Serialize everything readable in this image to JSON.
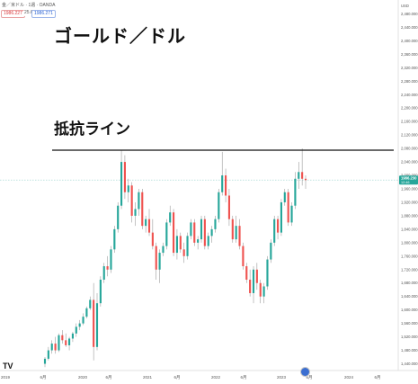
{
  "header": {
    "symbol_line": "金／米ドル · 1週 · OANDA",
    "sell_price": "1986.227",
    "spread": "25.6",
    "buy_price": "1986.271"
  },
  "overlay": {
    "title": "ゴールド／ドル",
    "resistance_label": "抵抗ライン"
  },
  "logo": "TV",
  "colors": {
    "up": "#26a69a",
    "down": "#ef5350",
    "wick": "#888888",
    "resistance": "#111111",
    "price_tag": "#26a69a"
  },
  "chart_data": {
    "type": "candlestick",
    "price_axis": {
      "currency": "USD",
      "ylim": [
        1420,
        2500
      ],
      "ticks": [
        "2,480.000",
        "2,440.000",
        "2,400.000",
        "2,360.000",
        "2,320.000",
        "2,280.000",
        "2,240.000",
        "2,200.000",
        "2,160.000",
        "2,120.000",
        "2,080.000",
        "2,040.000",
        "2,000.000",
        "1,960.000",
        "1,920.000",
        "1,880.000",
        "1,840.000",
        "1,800.000",
        "1,760.000",
        "1,720.000",
        "1,680.000",
        "1,640.000",
        "1,600.000",
        "1,560.000",
        "1,520.000",
        "1,480.000",
        "1,440.000"
      ]
    },
    "time_axis": [
      "2019",
      "6月",
      "2020",
      "6月",
      "2021",
      "6月",
      "2022",
      "6月",
      "2023",
      "6月",
      "2024",
      "6月"
    ],
    "resistance_level": 2075,
    "last_price": {
      "label": "1986.230",
      "sub": "12:46",
      "value": 1986.23
    },
    "candles": [
      [
        1440,
        1460,
        1430,
        1455
      ],
      [
        1455,
        1490,
        1450,
        1480
      ],
      [
        1480,
        1510,
        1470,
        1500
      ],
      [
        1500,
        1520,
        1470,
        1480
      ],
      [
        1480,
        1530,
        1475,
        1525
      ],
      [
        1525,
        1540,
        1500,
        1510
      ],
      [
        1510,
        1530,
        1490,
        1495
      ],
      [
        1495,
        1520,
        1480,
        1515
      ],
      [
        1515,
        1535,
        1505,
        1530
      ],
      [
        1530,
        1560,
        1520,
        1550
      ],
      [
        1550,
        1570,
        1540,
        1560
      ],
      [
        1560,
        1590,
        1555,
        1580
      ],
      [
        1580,
        1610,
        1575,
        1605
      ],
      [
        1605,
        1640,
        1600,
        1630
      ],
      [
        1630,
        1680,
        1450,
        1490
      ],
      [
        1490,
        1650,
        1480,
        1620
      ],
      [
        1620,
        1700,
        1610,
        1690
      ],
      [
        1690,
        1740,
        1680,
        1730
      ],
      [
        1730,
        1760,
        1700,
        1720
      ],
      [
        1720,
        1790,
        1710,
        1780
      ],
      [
        1780,
        1850,
        1770,
        1840
      ],
      [
        1840,
        1920,
        1830,
        1910
      ],
      [
        1910,
        2075,
        1900,
        2040
      ],
      [
        2040,
        2060,
        1930,
        1950
      ],
      [
        1950,
        1990,
        1920,
        1970
      ],
      [
        1970,
        1980,
        1860,
        1880
      ],
      [
        1880,
        1920,
        1850,
        1900
      ],
      [
        1900,
        1960,
        1880,
        1950
      ],
      [
        1950,
        1960,
        1840,
        1850
      ],
      [
        1850,
        1880,
        1830,
        1870
      ],
      [
        1870,
        1900,
        1820,
        1830
      ],
      [
        1830,
        1870,
        1780,
        1790
      ],
      [
        1790,
        1800,
        1690,
        1720
      ],
      [
        1720,
        1780,
        1680,
        1770
      ],
      [
        1770,
        1800,
        1760,
        1790
      ],
      [
        1790,
        1870,
        1780,
        1860
      ],
      [
        1860,
        1910,
        1850,
        1890
      ],
      [
        1890,
        1900,
        1760,
        1770
      ],
      [
        1770,
        1840,
        1750,
        1820
      ],
      [
        1820,
        1830,
        1770,
        1780
      ],
      [
        1780,
        1800,
        1740,
        1760
      ],
      [
        1760,
        1830,
        1750,
        1820
      ],
      [
        1820,
        1870,
        1810,
        1860
      ],
      [
        1860,
        1870,
        1790,
        1800
      ],
      [
        1800,
        1820,
        1780,
        1810
      ],
      [
        1810,
        1880,
        1800,
        1870
      ],
      [
        1870,
        1880,
        1780,
        1790
      ],
      [
        1790,
        1830,
        1780,
        1820
      ],
      [
        1820,
        1850,
        1800,
        1840
      ],
      [
        1840,
        1880,
        1830,
        1870
      ],
      [
        1870,
        1960,
        1860,
        1950
      ],
      [
        1950,
        2070,
        1940,
        2000
      ],
      [
        2000,
        2020,
        1920,
        1940
      ],
      [
        1940,
        1960,
        1850,
        1870
      ],
      [
        1870,
        1880,
        1800,
        1810
      ],
      [
        1810,
        1880,
        1800,
        1850
      ],
      [
        1850,
        1870,
        1780,
        1790
      ],
      [
        1790,
        1800,
        1720,
        1730
      ],
      [
        1730,
        1740,
        1680,
        1690
      ],
      [
        1690,
        1720,
        1640,
        1650
      ],
      [
        1650,
        1730,
        1620,
        1720
      ],
      [
        1720,
        1740,
        1660,
        1680
      ],
      [
        1680,
        1690,
        1620,
        1640
      ],
      [
        1640,
        1680,
        1620,
        1670
      ],
      [
        1670,
        1760,
        1660,
        1750
      ],
      [
        1750,
        1810,
        1740,
        1800
      ],
      [
        1800,
        1880,
        1790,
        1870
      ],
      [
        1870,
        1880,
        1810,
        1830
      ],
      [
        1830,
        1930,
        1820,
        1920
      ],
      [
        1920,
        1960,
        1910,
        1950
      ],
      [
        1950,
        1960,
        1850,
        1860
      ],
      [
        1860,
        1920,
        1850,
        1910
      ],
      [
        1910,
        2010,
        1900,
        1990
      ],
      [
        1990,
        2040,
        1960,
        2010
      ],
      [
        2010,
        2080,
        1970,
        1990
      ],
      [
        1990,
        2000,
        1960,
        1986
      ]
    ]
  }
}
